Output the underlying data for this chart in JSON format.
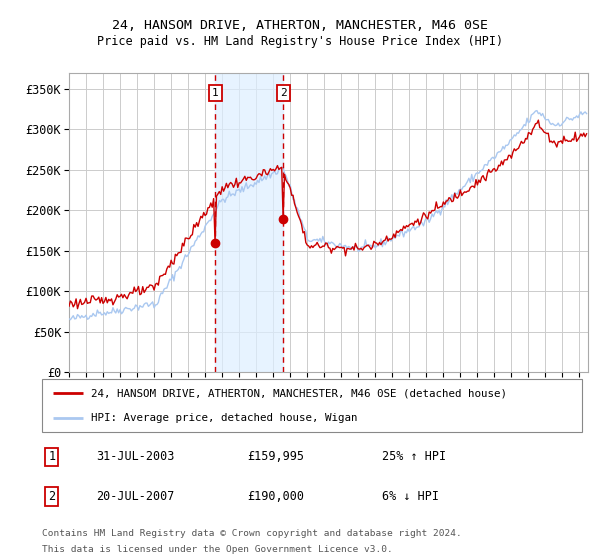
{
  "title": "24, HANSOM DRIVE, ATHERTON, MANCHESTER, M46 0SE",
  "subtitle": "Price paid vs. HM Land Registry's House Price Index (HPI)",
  "background_color": "#ffffff",
  "plot_bg_color": "#ffffff",
  "grid_color": "#cccccc",
  "red_line_color": "#cc0000",
  "blue_line_color": "#aac8f0",
  "shade_color": "#ddeeff",
  "vline_color": "#cc0000",
  "marker1_date": "31-JUL-2003",
  "marker2_date": "20-JUL-2007",
  "marker1_price": "£159,995",
  "marker2_price": "£190,000",
  "marker1_hpi": "25% ↑ HPI",
  "marker2_hpi": "6% ↓ HPI",
  "legend_red": "24, HANSOM DRIVE, ATHERTON, MANCHESTER, M46 0SE (detached house)",
  "legend_blue": "HPI: Average price, detached house, Wigan",
  "footer1": "Contains HM Land Registry data © Crown copyright and database right 2024.",
  "footer2": "This data is licensed under the Open Government Licence v3.0.",
  "ylim": [
    0,
    370000
  ],
  "yticks": [
    0,
    50000,
    100000,
    150000,
    200000,
    250000,
    300000,
    350000
  ],
  "ytick_labels": [
    "£0",
    "£50K",
    "£100K",
    "£150K",
    "£200K",
    "£250K",
    "£300K",
    "£350K"
  ]
}
